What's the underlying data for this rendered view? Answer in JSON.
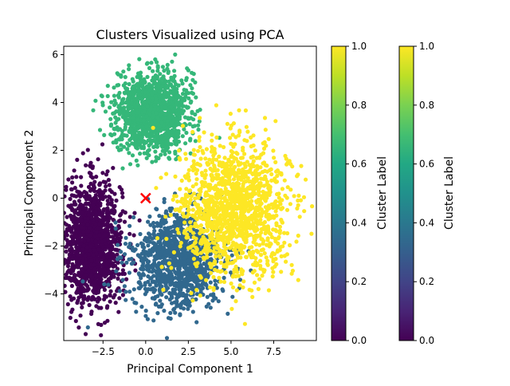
{
  "chart_data": {
    "type": "scatter",
    "title": "Clusters Visualized using PCA",
    "xlabel": "Principal Component 1",
    "ylabel": "Principal Component 2",
    "xlim": [
      -4.8,
      10.0
    ],
    "ylim": [
      -5.95,
      6.35
    ],
    "xticks": [
      -2.5,
      0.0,
      2.5,
      5.0,
      7.5
    ],
    "xtick_labels": [
      "−2.5",
      "0.0",
      "2.5",
      "5.0",
      "7.5"
    ],
    "yticks": [
      -4,
      -2,
      0,
      2,
      4,
      6
    ],
    "ytick_labels": [
      "−4",
      "−2",
      "0",
      "2",
      "4",
      "6"
    ],
    "grid": false,
    "colormap": "viridis",
    "series": [
      {
        "cluster": 0,
        "color": "#440154",
        "center": [
          -3.1,
          -1.9
        ],
        "spread": [
          0.85,
          1.25
        ],
        "count": 1400
      },
      {
        "cluster": 1,
        "color": "#31688e",
        "center": [
          1.9,
          -2.6
        ],
        "spread": [
          1.35,
          1.0
        ],
        "count": 1100
      },
      {
        "cluster": 2,
        "color": "#35b779",
        "center": [
          0.4,
          3.6
        ],
        "spread": [
          1.05,
          0.8
        ],
        "count": 1300
      },
      {
        "cluster": 3,
        "color": "#fde725",
        "center": [
          5.2,
          -0.5
        ],
        "spread": [
          1.6,
          1.4
        ],
        "count": 1400
      }
    ],
    "centroid_marker": {
      "x": 0.0,
      "y": 0.0,
      "marker": "x",
      "color": "#ff0000"
    },
    "colorbars": [
      {
        "label": "Cluster Label",
        "ticks": [
          "0.0",
          "0.2",
          "0.4",
          "0.6",
          "0.8",
          "1.0"
        ]
      },
      {
        "label": "Cluster Label",
        "ticks": [
          "0.0",
          "0.2",
          "0.4",
          "0.6",
          "0.8",
          "1.0"
        ]
      }
    ]
  }
}
